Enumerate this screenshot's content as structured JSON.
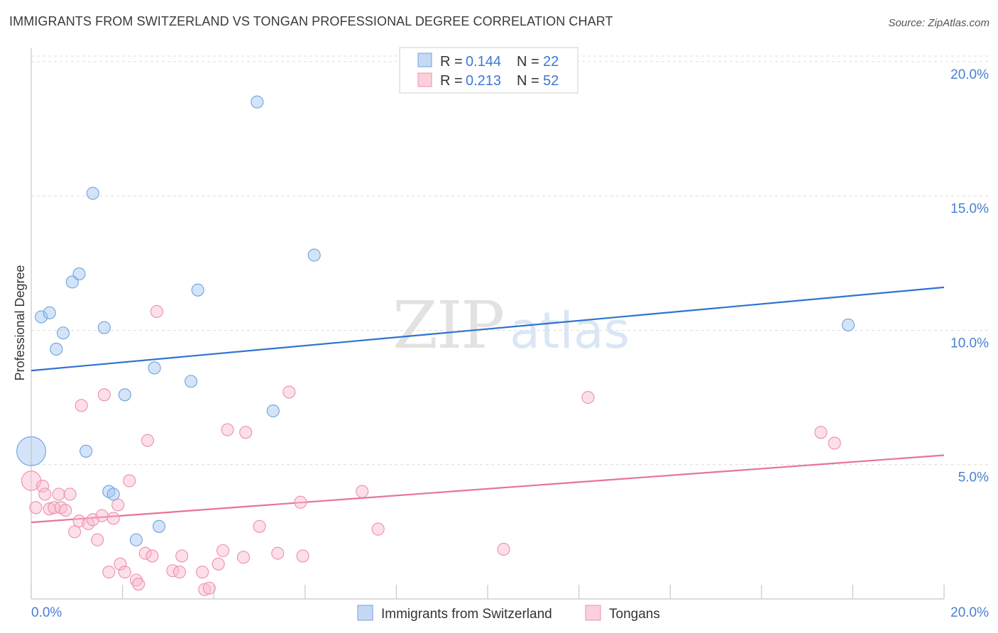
{
  "title": "IMMIGRANTS FROM SWITZERLAND VS TONGAN PROFESSIONAL DEGREE CORRELATION CHART",
  "source": "Source: ZipAtlas.com",
  "watermark": {
    "zip": "ZIP",
    "atlas": "atlas"
  },
  "legend": {
    "rows": [
      {
        "r_label": "R =",
        "r_value": "0.144",
        "n_label": "N =",
        "n_value": "22"
      },
      {
        "r_label": "R =",
        "r_value": "0.213",
        "n_label": "N =",
        "n_value": "52"
      }
    ]
  },
  "chart_data": {
    "type": "scatter",
    "title": "IMMIGRANTS FROM SWITZERLAND VS TONGAN PROFESSIONAL DEGREE CORRELATION CHART",
    "xlabel": "",
    "ylabel": "Professional Degree",
    "xlim": [
      0,
      20
    ],
    "ylim": [
      0,
      20.5
    ],
    "x_tick_labels": [
      "0.0%",
      "20.0%"
    ],
    "y_ticks": [
      5,
      10,
      15,
      20
    ],
    "y_tick_labels": [
      "5.0%",
      "10.0%",
      "15.0%",
      "20.0%"
    ],
    "legend_position": "top-center",
    "colors": {
      "switzerland": "#6fa0e0",
      "tongan": "#ee8fab",
      "switzerland_line": "#2f73d0",
      "tongan_line": "#e8739a"
    },
    "series": [
      {
        "name": "Immigrants from Switzerland",
        "trend": [
          [
            0,
            8.5
          ],
          [
            20,
            11.6
          ]
        ],
        "points": [
          [
            0.0,
            5.5,
            2.4
          ],
          [
            0.22,
            10.5,
            1
          ],
          [
            0.4,
            10.65,
            1
          ],
          [
            0.55,
            9.3,
            1
          ],
          [
            0.7,
            9.9,
            1
          ],
          [
            0.9,
            11.8,
            1
          ],
          [
            1.05,
            12.1,
            1
          ],
          [
            1.2,
            5.5,
            1
          ],
          [
            1.35,
            15.1,
            1
          ],
          [
            1.6,
            10.1,
            1
          ],
          [
            1.7,
            4.0,
            1
          ],
          [
            1.8,
            3.9,
            1
          ],
          [
            2.05,
            7.6,
            1
          ],
          [
            2.3,
            2.2,
            1
          ],
          [
            2.7,
            8.6,
            1
          ],
          [
            2.8,
            2.7,
            1
          ],
          [
            3.5,
            8.1,
            1
          ],
          [
            3.65,
            11.5,
            1
          ],
          [
            4.95,
            18.5,
            1
          ],
          [
            5.3,
            7.0,
            1
          ],
          [
            6.2,
            12.8,
            1
          ],
          [
            17.9,
            10.2,
            1
          ]
        ]
      },
      {
        "name": "Tongans",
        "trend": [
          [
            0,
            2.85
          ],
          [
            20,
            5.35
          ]
        ],
        "points": [
          [
            0.0,
            4.4,
            1.6
          ],
          [
            0.1,
            3.4,
            1
          ],
          [
            0.25,
            4.2,
            1
          ],
          [
            0.3,
            3.9,
            1
          ],
          [
            0.4,
            3.35,
            1
          ],
          [
            0.5,
            3.4,
            1
          ],
          [
            0.6,
            3.9,
            1
          ],
          [
            0.65,
            3.4,
            1
          ],
          [
            0.75,
            3.3,
            1
          ],
          [
            0.85,
            3.9,
            1
          ],
          [
            0.95,
            2.5,
            1
          ],
          [
            1.05,
            2.9,
            1
          ],
          [
            1.1,
            7.2,
            1
          ],
          [
            1.25,
            2.8,
            1
          ],
          [
            1.35,
            2.95,
            1
          ],
          [
            1.45,
            2.2,
            1
          ],
          [
            1.55,
            3.1,
            1
          ],
          [
            1.6,
            7.6,
            1
          ],
          [
            1.7,
            1.0,
            1
          ],
          [
            1.8,
            3.0,
            1
          ],
          [
            1.9,
            3.5,
            1
          ],
          [
            1.95,
            1.3,
            1
          ],
          [
            2.05,
            1.0,
            1
          ],
          [
            2.15,
            4.4,
            1
          ],
          [
            2.3,
            0.7,
            1
          ],
          [
            2.35,
            0.55,
            1
          ],
          [
            2.5,
            1.7,
            1
          ],
          [
            2.55,
            5.9,
            1
          ],
          [
            2.65,
            1.6,
            1
          ],
          [
            2.75,
            10.7,
            1
          ],
          [
            3.1,
            1.05,
            1
          ],
          [
            3.25,
            1.0,
            1
          ],
          [
            3.3,
            1.6,
            1
          ],
          [
            3.75,
            1.0,
            1
          ],
          [
            3.8,
            0.35,
            1
          ],
          [
            3.9,
            0.4,
            1
          ],
          [
            4.1,
            1.3,
            1
          ],
          [
            4.2,
            1.8,
            1
          ],
          [
            4.3,
            6.3,
            1
          ],
          [
            4.65,
            1.55,
            1
          ],
          [
            4.7,
            6.2,
            1
          ],
          [
            5.0,
            2.7,
            1
          ],
          [
            5.4,
            1.7,
            1
          ],
          [
            5.65,
            7.7,
            1
          ],
          [
            5.9,
            3.6,
            1
          ],
          [
            5.95,
            1.6,
            1
          ],
          [
            7.25,
            4.0,
            1
          ],
          [
            7.6,
            2.6,
            1
          ],
          [
            10.35,
            1.85,
            1
          ],
          [
            12.2,
            7.5,
            1
          ],
          [
            17.3,
            6.2,
            1
          ],
          [
            17.6,
            5.8,
            1
          ]
        ]
      }
    ]
  }
}
